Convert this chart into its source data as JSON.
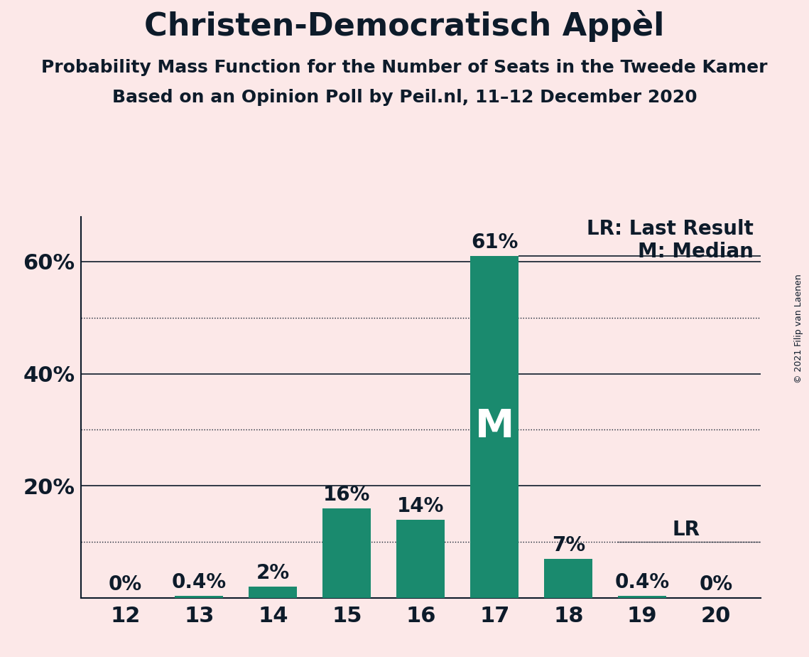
{
  "title": "Christen-Democratisch Appèl",
  "subtitle1": "Probability Mass Function for the Number of Seats in the Tweede Kamer",
  "subtitle2": "Based on an Opinion Poll by Peil.nl, 11–12 December 2020",
  "copyright": "© 2021 Filip van Laenen",
  "categories": [
    12,
    13,
    14,
    15,
    16,
    17,
    18,
    19,
    20
  ],
  "values": [
    0.0,
    0.4,
    2.0,
    16.0,
    14.0,
    61.0,
    7.0,
    0.4,
    0.0
  ],
  "bar_color": "#1a8a6e",
  "background_color": "#fce8e8",
  "bar_labels": [
    "0%",
    "0.4%",
    "2%",
    "16%",
    "14%",
    "61%",
    "7%",
    "0.4%",
    "0%"
  ],
  "solid_gridlines": [
    20,
    40,
    60
  ],
  "dotted_gridlines": [
    10,
    30,
    50
  ],
  "ylabel_ticks": [
    20,
    40,
    60
  ],
  "ylim": [
    0,
    68
  ],
  "median_seat": 17,
  "lr_seat": 19,
  "lr_value": 10,
  "median_label": "M",
  "legend_lr": "LR: Last Result",
  "legend_m": "M: Median",
  "title_fontsize": 32,
  "subtitle_fontsize": 18,
  "tick_fontsize": 22,
  "label_fontsize": 20,
  "text_color": "#0d1b2a"
}
